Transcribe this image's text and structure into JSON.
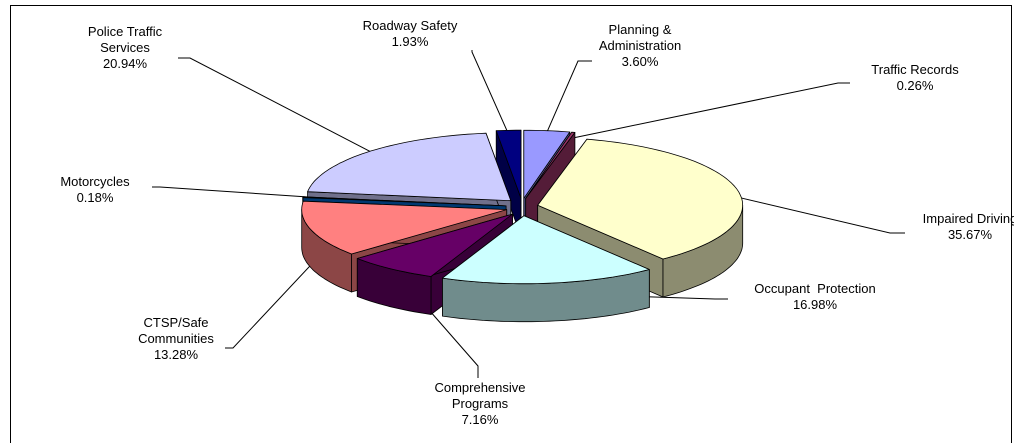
{
  "chart_data": {
    "type": "pie3d",
    "categories": [
      "Planning &\nAdministration",
      "Traffic Records",
      "Impaired Driving",
      "Occupant  Protection",
      "Comprehensive\nPrograms",
      "CTSP/Safe\nCommunities",
      "Motorcycles",
      "Police Traffic\nServices",
      "Roadway Safety"
    ],
    "values": [
      3.6,
      0.26,
      35.67,
      16.98,
      7.16,
      13.28,
      0.18,
      20.94,
      1.93
    ],
    "value_labels": [
      "3.60%",
      "0.26%",
      "35.67%",
      "16.98%",
      "7.16%",
      "13.28%",
      "0.18%",
      "20.94%",
      "1.93%"
    ],
    "colors": [
      "#9999ff",
      "#993366",
      "#ffffcc",
      "#ccffff",
      "#660066",
      "#ff8080",
      "#0066cc",
      "#ccccff",
      "#000080"
    ]
  }
}
